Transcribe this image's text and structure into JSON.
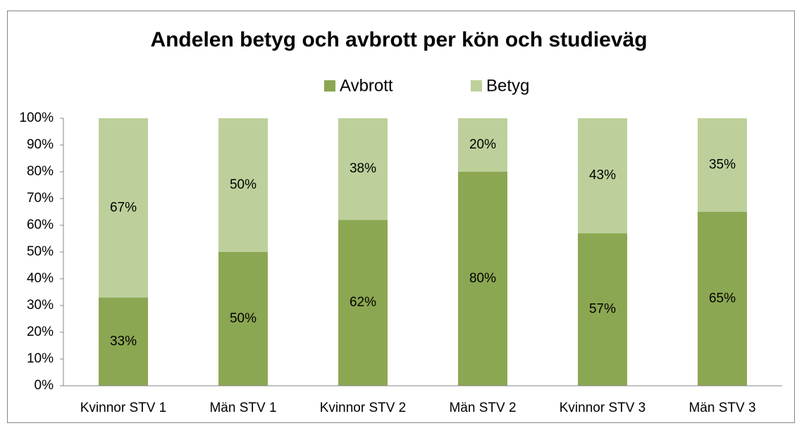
{
  "chart_data": {
    "type": "stacked_bar",
    "title": "Andelen betyg och avbrott per kön och studieväg",
    "categories": [
      "Kvinnor STV 1",
      "Män STV 1",
      "Kvinnor STV 2",
      "Män STV 2",
      "Kvinnor  STV 3",
      "Män STV 3"
    ],
    "series": [
      {
        "name": "Avbrott",
        "color": "#8ca752",
        "values": [
          33,
          50,
          62,
          80,
          57,
          65
        ],
        "value_labels": [
          "33%",
          "50%",
          "62%",
          "80%",
          "57%",
          "65%"
        ]
      },
      {
        "name": "Betyg",
        "color": "#bdd09b",
        "values": [
          67,
          50,
          38,
          20,
          43,
          35
        ],
        "value_labels": [
          "67%",
          "50%",
          "38%",
          "20%",
          "43%",
          "35%"
        ]
      }
    ],
    "ylim": [
      0,
      100
    ],
    "yticks": [
      {
        "value": 0,
        "label": "0%"
      },
      {
        "value": 10,
        "label": "10%"
      },
      {
        "value": 20,
        "label": "20%"
      },
      {
        "value": 30,
        "label": "30%"
      },
      {
        "value": 40,
        "label": "40%"
      },
      {
        "value": 50,
        "label": "50%"
      },
      {
        "value": 60,
        "label": "60%"
      },
      {
        "value": 70,
        "label": "70%"
      },
      {
        "value": 80,
        "label": "80%"
      },
      {
        "value": 90,
        "label": "90%"
      },
      {
        "value": 100,
        "label": "100%"
      }
    ],
    "grid": false,
    "legend": "top"
  }
}
